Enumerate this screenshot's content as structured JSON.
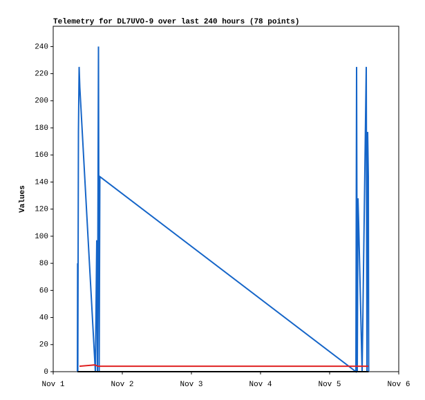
{
  "chart_data": {
    "type": "line",
    "title": "Telemetry for DL7UVO-9 over last 240 hours (78 points)",
    "ylabel": "Values",
    "xlim": [
      1,
      6
    ],
    "xticks": [
      {
        "value": 1,
        "label": "Nov 1"
      },
      {
        "value": 2,
        "label": "Nov 2"
      },
      {
        "value": 3,
        "label": "Nov 3"
      },
      {
        "value": 4,
        "label": "Nov 4"
      },
      {
        "value": 5,
        "label": "Nov 5"
      },
      {
        "value": 6,
        "label": "Nov 6"
      }
    ],
    "ylim": [
      0,
      255
    ],
    "yticks": [
      0,
      20,
      40,
      60,
      80,
      100,
      120,
      140,
      160,
      180,
      200,
      220,
      240
    ],
    "series": [
      {
        "color": "#1565c8",
        "x": [
          1.35,
          1.353,
          1.356,
          1.365,
          1.375,
          1.385,
          1.61,
          1.63,
          1.64,
          1.655,
          1.665,
          1.675,
          5.38,
          5.39,
          5.4,
          5.41,
          5.42,
          5.47,
          5.53,
          5.54,
          5.55,
          5.56,
          5.565
        ],
        "values": [
          0,
          80,
          0,
          177,
          225,
          210,
          0,
          97,
          0,
          240,
          0,
          144,
          0,
          225,
          0,
          128,
          110,
          0,
          225,
          0,
          177,
          144,
          0
        ]
      },
      {
        "color": "#e02020",
        "x": [
          1.38,
          1.6,
          1.65,
          5.56
        ],
        "values": [
          4,
          5,
          4,
          4
        ]
      },
      {
        "color": "#000000",
        "x": [
          1.35,
          5.565
        ],
        "values": [
          0,
          0
        ]
      }
    ]
  }
}
